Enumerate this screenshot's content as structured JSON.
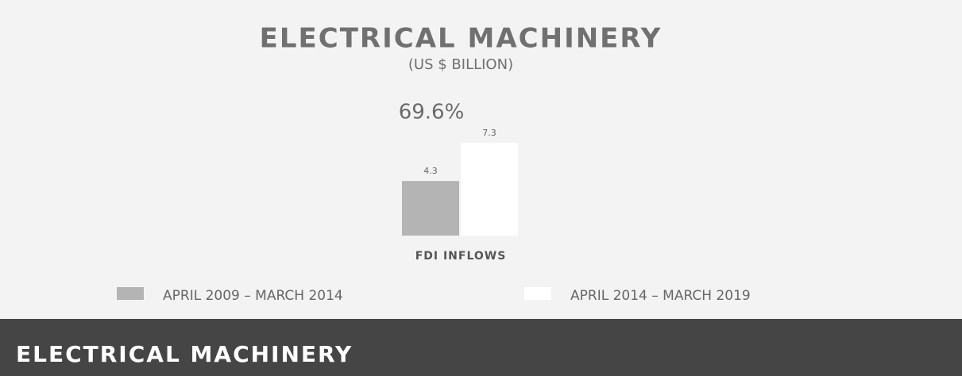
{
  "chart_data": {
    "type": "bar",
    "title": "ELECTRICAL MACHINERY",
    "subtitle": "(US $ BILLION)",
    "annotation": "69.6%",
    "categories": [
      "FDI INFLOWS"
    ],
    "series": [
      {
        "name": "APRIL 2009 – MARCH 2014",
        "color": "#b4b4b4",
        "values": [
          4.3
        ]
      },
      {
        "name": "APRIL 2014 – MARCH 2019",
        "color": "#ffffff",
        "values": [
          7.3
        ]
      }
    ]
  },
  "footer": {
    "title": "ELECTRICAL MACHINERY"
  }
}
